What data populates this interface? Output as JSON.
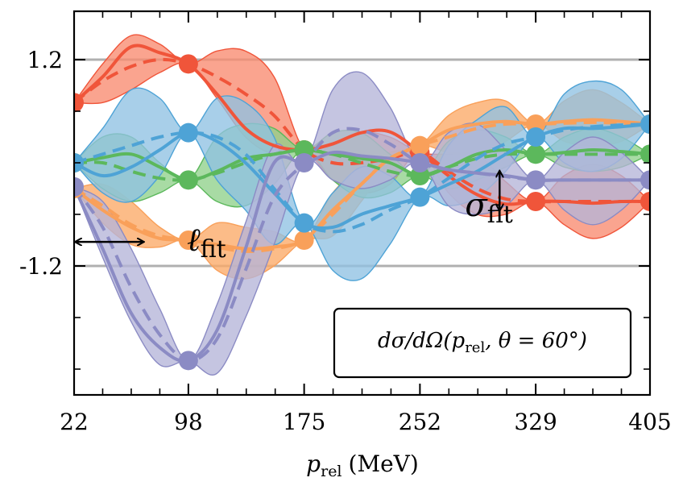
{
  "chart_data": {
    "type": "line",
    "xlabel": "p_rel (MeV)",
    "xlabel_parts": {
      "var": "p",
      "sub": "rel",
      "unit": "(MeV)"
    },
    "xticks": [
      22,
      98,
      175,
      252,
      329,
      405
    ],
    "xlim": [
      22,
      405
    ],
    "yticks": [
      1.2,
      -1.2
    ],
    "ytick_labels": [
      "1.2",
      "-1.2"
    ],
    "ylim": [
      -2.6,
      2.2
    ],
    "grid": "horizontal lines at y = 1.2 and y = -1.2",
    "legend_box_text": "dσ/dΩ(p_rel, θ = 60°)",
    "legend_box_parts": {
      "a": "dσ/dΩ(p",
      "sub": "rel",
      "b": ", θ = 60°)"
    },
    "legend_placement": "lower-right",
    "annotations": [
      {
        "text_main": "ℓ",
        "text_sub": "fit",
        "meaning": "length-scale arrow, horizontal, from x=22 to x=68"
      },
      {
        "text_main": "σ",
        "text_sub": "fit",
        "meaning": "amplitude arrow, vertical, at x=305 between y=-0.1 and y=-0.55"
      }
    ],
    "training_x": [
      22,
      98,
      175,
      252,
      329,
      405
    ],
    "colors": {
      "red": "#f0553a",
      "red_band": "#f98b70",
      "orange": "#f9a05a",
      "orange_band": "#fba966",
      "green": "#5cb85c",
      "green_band": "#8fd18a",
      "blue": "#4ea3d6",
      "blue_band": "#8fc2e3",
      "purple": "#8b8bc4",
      "purple_band": "#b5b5d9",
      "grid": "#b0b0b0"
    },
    "series": [
      {
        "color_key": "red",
        "band_key": "red_band",
        "x": [
          22,
          41,
          60,
          79,
          98,
          117,
          136,
          155,
          175,
          194,
          213,
          232,
          252,
          271,
          290,
          309,
          329,
          348,
          367,
          386,
          405
        ],
        "truth": [
          0.7,
          1.0,
          1.35,
          1.28,
          1.15,
          0.8,
          0.4,
          0.2,
          0.15,
          0.22,
          0.35,
          0.36,
          0.12,
          -0.15,
          -0.37,
          -0.48,
          -0.45,
          -0.45,
          -0.47,
          -0.45,
          -0.45
        ],
        "mean": [
          0.7,
          0.95,
          1.12,
          1.2,
          1.15,
          1.0,
          0.8,
          0.55,
          0.15,
          0.0,
          0.0,
          0.05,
          0.12,
          -0.1,
          -0.3,
          -0.42,
          -0.45,
          -0.45,
          -0.45,
          -0.45,
          -0.45
        ],
        "lower": [
          0.7,
          0.7,
          0.85,
          1.05,
          1.15,
          0.75,
          0.3,
          0.1,
          0.15,
          -0.2,
          -0.35,
          -0.25,
          0.12,
          -0.35,
          -0.6,
          -0.6,
          -0.45,
          -0.72,
          -0.88,
          -0.75,
          -0.45
        ],
        "upper": [
          0.7,
          1.15,
          1.48,
          1.38,
          1.15,
          1.3,
          1.3,
          1.0,
          0.15,
          0.2,
          0.35,
          0.3,
          0.12,
          0.1,
          0.1,
          -0.22,
          -0.45,
          -0.15,
          -0.02,
          -0.15,
          -0.45
        ]
      },
      {
        "color_key": "orange",
        "band_key": "orange_band",
        "x": [
          22,
          41,
          60,
          79,
          98,
          117,
          136,
          155,
          175,
          194,
          213,
          232,
          252,
          271,
          290,
          309,
          329,
          348,
          367,
          386,
          405
        ],
        "truth": [
          -0.3,
          -0.55,
          -0.75,
          -0.88,
          -0.9,
          -0.95,
          -1.0,
          -0.98,
          -0.9,
          -0.55,
          -0.25,
          0.05,
          0.2,
          0.38,
          0.45,
          0.48,
          0.45,
          0.48,
          0.5,
          0.48,
          0.45
        ],
        "mean": [
          -0.3,
          -0.5,
          -0.72,
          -0.85,
          -0.9,
          -0.98,
          -1.03,
          -1.0,
          -0.9,
          -0.6,
          -0.25,
          0.05,
          0.2,
          0.3,
          0.4,
          0.45,
          0.45,
          0.46,
          0.47,
          0.46,
          0.45
        ],
        "lower": [
          -0.3,
          -0.7,
          -0.95,
          -0.98,
          -0.9,
          -1.25,
          -1.35,
          -1.2,
          -0.9,
          -0.85,
          -0.45,
          0.0,
          0.2,
          0.12,
          0.1,
          0.25,
          0.45,
          0.25,
          0.2,
          0.25,
          0.45
        ],
        "upper": [
          -0.3,
          -0.25,
          -0.45,
          -0.75,
          -0.9,
          -0.7,
          -0.75,
          -0.8,
          -0.9,
          -0.35,
          -0.05,
          0.12,
          0.2,
          0.55,
          0.7,
          0.72,
          0.45,
          0.72,
          0.85,
          0.7,
          0.45
        ]
      },
      {
        "color_key": "green",
        "band_key": "green_band",
        "x": [
          22,
          41,
          60,
          79,
          98,
          117,
          136,
          155,
          175,
          194,
          213,
          232,
          252,
          271,
          290,
          309,
          329,
          348,
          367,
          386,
          405
        ],
        "truth": [
          0.0,
          0.06,
          0.1,
          -0.05,
          -0.2,
          -0.1,
          0.05,
          0.1,
          0.15,
          0.1,
          0.05,
          0.0,
          -0.15,
          -0.05,
          0.1,
          0.15,
          0.1,
          0.12,
          0.15,
          0.13,
          0.1
        ],
        "mean": [
          0.0,
          0.0,
          -0.1,
          -0.18,
          -0.2,
          -0.12,
          0.0,
          0.1,
          0.15,
          0.1,
          0.0,
          -0.1,
          -0.15,
          -0.05,
          0.05,
          0.1,
          0.1,
          0.1,
          0.1,
          0.1,
          0.1
        ],
        "lower": [
          0.0,
          -0.3,
          -0.45,
          -0.35,
          -0.2,
          -0.45,
          -0.5,
          -0.25,
          0.15,
          -0.2,
          -0.4,
          -0.35,
          -0.15,
          -0.3,
          -0.2,
          -0.05,
          0.1,
          -0.05,
          -0.1,
          -0.05,
          0.1
        ],
        "upper": [
          0.0,
          0.3,
          0.3,
          0.0,
          -0.2,
          0.3,
          0.45,
          0.4,
          0.15,
          0.35,
          0.35,
          0.1,
          -0.15,
          0.25,
          0.38,
          0.3,
          0.1,
          0.3,
          0.4,
          0.3,
          0.1
        ]
      },
      {
        "color_key": "blue",
        "band_key": "blue_band",
        "x": [
          22,
          41,
          60,
          79,
          98,
          117,
          136,
          155,
          175,
          194,
          213,
          232,
          252,
          271,
          290,
          309,
          329,
          348,
          367,
          386,
          405
        ],
        "truth": [
          0.0,
          -0.15,
          -0.05,
          0.15,
          0.35,
          0.25,
          0.0,
          -0.35,
          -0.7,
          -0.75,
          -0.6,
          -0.5,
          -0.4,
          -0.25,
          -0.1,
          0.1,
          0.3,
          0.4,
          0.4,
          0.42,
          0.45
        ],
        "mean": [
          0.0,
          0.1,
          0.2,
          0.3,
          0.35,
          0.3,
          0.1,
          -0.3,
          -0.7,
          -0.8,
          -0.72,
          -0.55,
          -0.4,
          -0.18,
          0.05,
          0.22,
          0.3,
          0.38,
          0.42,
          0.44,
          0.45
        ],
        "lower": [
          0.0,
          -0.35,
          -0.45,
          -0.15,
          0.35,
          -0.2,
          -0.55,
          -0.95,
          -0.7,
          -1.25,
          -1.35,
          -0.95,
          -0.4,
          -0.5,
          -0.4,
          -0.1,
          0.3,
          0.0,
          -0.1,
          0.05,
          0.45
        ],
        "upper": [
          0.0,
          0.4,
          0.85,
          0.75,
          0.35,
          0.75,
          0.7,
          0.3,
          -0.7,
          -0.35,
          -0.05,
          -0.15,
          -0.4,
          0.2,
          0.5,
          0.65,
          0.3,
          0.8,
          0.95,
          0.85,
          0.45
        ]
      },
      {
        "color_key": "purple",
        "band_key": "purple_band",
        "x": [
          22,
          41,
          60,
          79,
          98,
          117,
          136,
          155,
          175,
          194,
          213,
          232,
          252,
          271,
          290,
          309,
          329,
          348,
          367,
          386,
          405
        ],
        "truth": [
          -0.28,
          -1.0,
          -1.75,
          -2.15,
          -2.3,
          -1.95,
          -1.0,
          0.0,
          0.0,
          0.12,
          0.08,
          0.05,
          0.0,
          -0.08,
          -0.12,
          -0.15,
          -0.2,
          -0.2,
          -0.2,
          -0.2,
          -0.2
        ],
        "mean": [
          -0.28,
          -0.75,
          -1.45,
          -2.0,
          -2.3,
          -2.05,
          -1.25,
          -0.4,
          0.0,
          0.35,
          0.38,
          0.22,
          0.0,
          -0.08,
          -0.12,
          -0.16,
          -0.2,
          -0.2,
          -0.2,
          -0.2,
          -0.2
        ],
        "lower": [
          -0.28,
          -1.1,
          -1.85,
          -2.35,
          -2.3,
          -2.45,
          -1.8,
          -0.95,
          0.0,
          -0.2,
          -0.3,
          -0.2,
          0.0,
          -0.5,
          -0.6,
          -0.5,
          -0.2,
          -0.55,
          -0.72,
          -0.55,
          -0.2
        ],
        "upper": [
          -0.28,
          -0.45,
          -1.0,
          -1.7,
          -2.3,
          -1.65,
          -0.7,
          0.2,
          0.0,
          0.85,
          1.05,
          0.65,
          0.0,
          0.35,
          0.45,
          0.15,
          -0.2,
          0.12,
          0.3,
          0.12,
          -0.2
        ]
      }
    ]
  }
}
